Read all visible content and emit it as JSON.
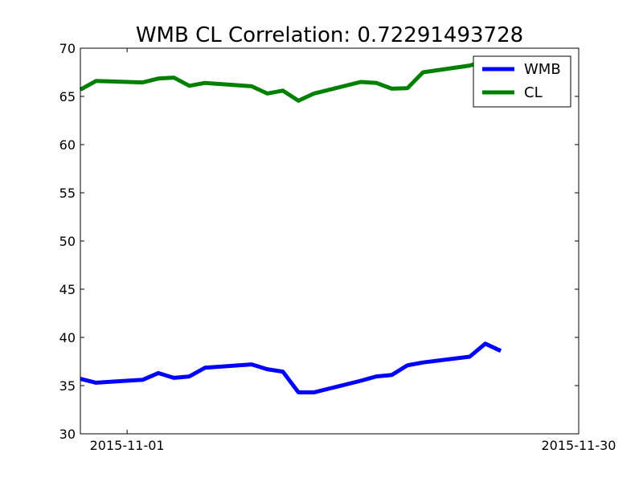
{
  "chart_data": {
    "type": "line",
    "title": "WMB CL Correlation: 0.72291493728",
    "xlabel": "",
    "ylabel": "",
    "ylim": [
      30,
      70
    ],
    "yticks": [
      30,
      35,
      40,
      45,
      50,
      55,
      60,
      65,
      70
    ],
    "xlim": [
      "2015-10-29",
      "2015-11-30"
    ],
    "xticks": [
      "2015-11-01",
      "2015-11-30"
    ],
    "grid": false,
    "legend_position": "top-right",
    "x": [
      "2015-10-29",
      "2015-10-30",
      "2015-11-02",
      "2015-11-03",
      "2015-11-04",
      "2015-11-05",
      "2015-11-06",
      "2015-11-09",
      "2015-11-10",
      "2015-11-11",
      "2015-11-12",
      "2015-11-13",
      "2015-11-16",
      "2015-11-17",
      "2015-11-18",
      "2015-11-19",
      "2015-11-20",
      "2015-11-23",
      "2015-11-24",
      "2015-11-25",
      "2015-11-27",
      "2015-11-30"
    ],
    "series": [
      {
        "name": "WMB",
        "color": "#0000ff",
        "values": [
          35.7,
          35.3,
          35.6,
          36.3,
          35.8,
          35.95,
          36.85,
          37.2,
          36.7,
          36.45,
          34.3,
          34.3,
          35.5,
          35.95,
          36.1,
          37.1,
          37.4,
          38.0,
          39.35,
          38.6,
          null,
          null
        ]
      },
      {
        "name": "CL",
        "color": "#008000",
        "values": [
          65.7,
          66.6,
          66.45,
          66.85,
          66.95,
          66.1,
          66.4,
          66.05,
          65.3,
          65.6,
          64.55,
          65.3,
          66.5,
          66.4,
          65.8,
          65.85,
          67.5,
          68.2,
          68.7,
          68.5,
          null,
          null
        ]
      }
    ]
  }
}
